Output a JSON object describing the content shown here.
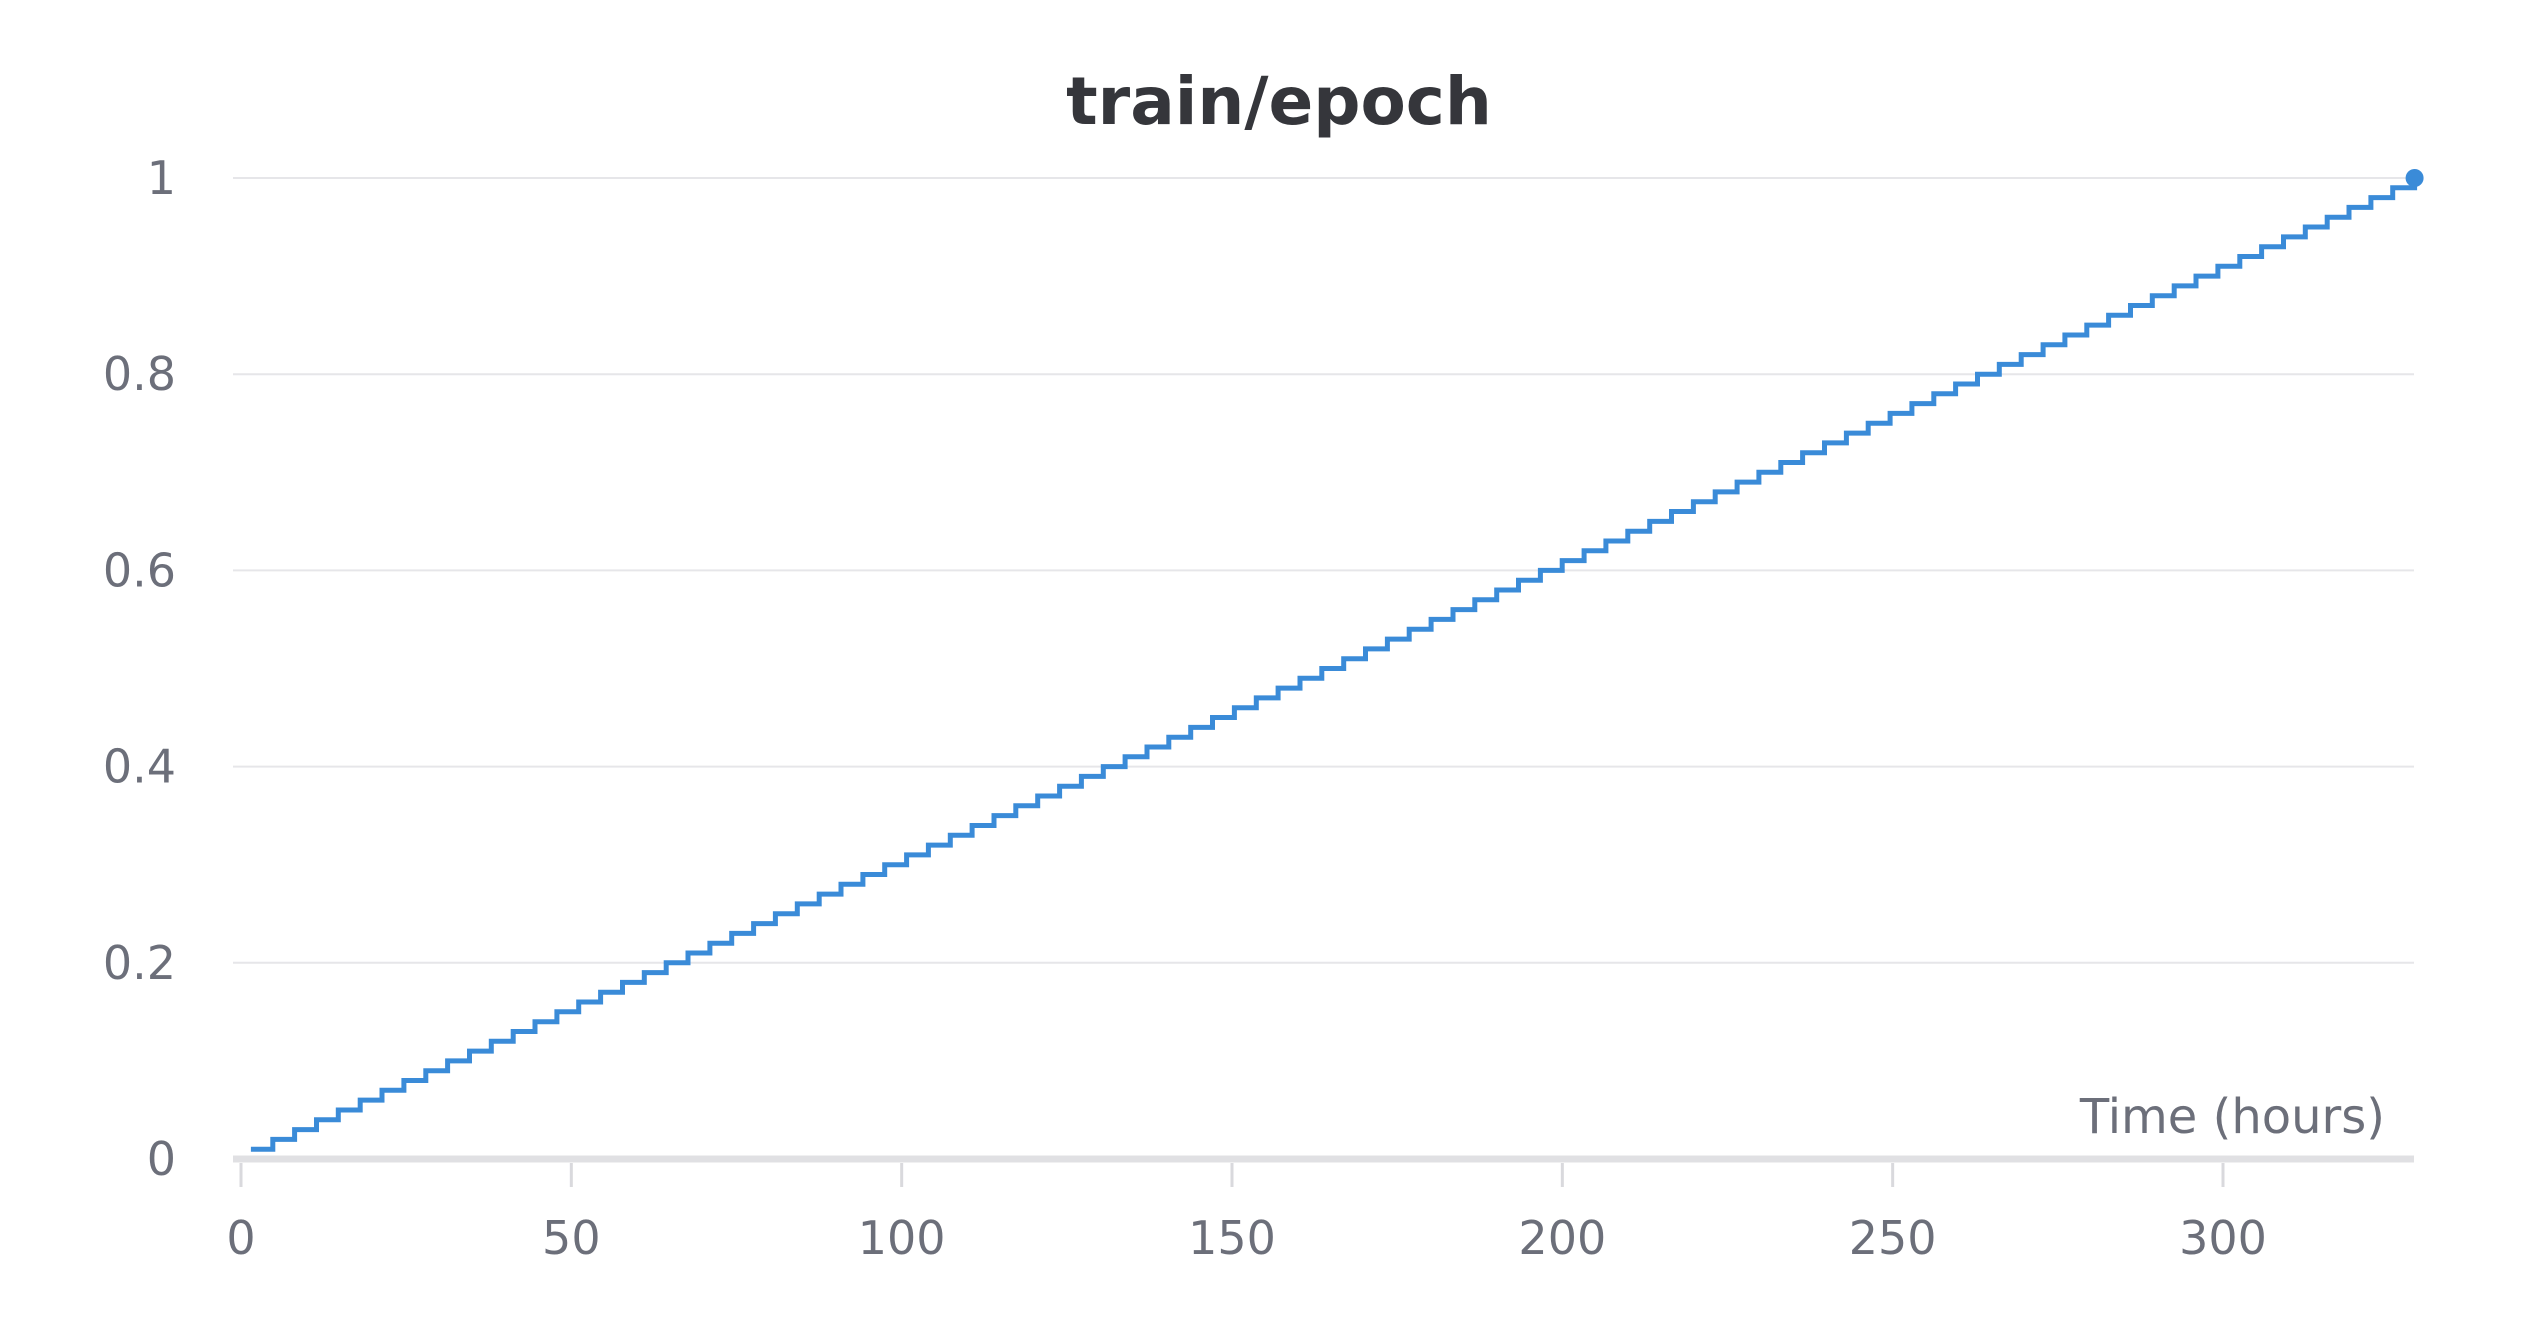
{
  "chart_data": {
    "type": "line",
    "title": "train/epoch",
    "xlabel": "Time (hours)",
    "ylabel": "",
    "xlim": [
      0,
      329
    ],
    "ylim": [
      0,
      1
    ],
    "x_ticks": [
      0,
      50,
      100,
      150,
      200,
      250,
      300
    ],
    "x_tick_labels": [
      "0",
      "50",
      "100",
      "150",
      "200",
      "250",
      "300"
    ],
    "y_ticks": [
      0,
      0.2,
      0.4,
      0.6,
      0.8,
      1
    ],
    "y_tick_labels": [
      "0",
      "0.2",
      "0.4",
      "0.6",
      "0.8",
      "1"
    ],
    "grid": "horizontal",
    "legend": "none",
    "line_shape": "stepped",
    "series": [
      {
        "color": "#3a8bd8",
        "x_start": 1.5,
        "x_end": 329,
        "y_start": 0.01,
        "y_end": 1.0,
        "step_increment": 0.01,
        "end_marker": true
      }
    ],
    "colors": {
      "grid": "#e6e6e9",
      "baseline": "#e0e0e3",
      "axis_tick": "#d9d9dd"
    }
  }
}
